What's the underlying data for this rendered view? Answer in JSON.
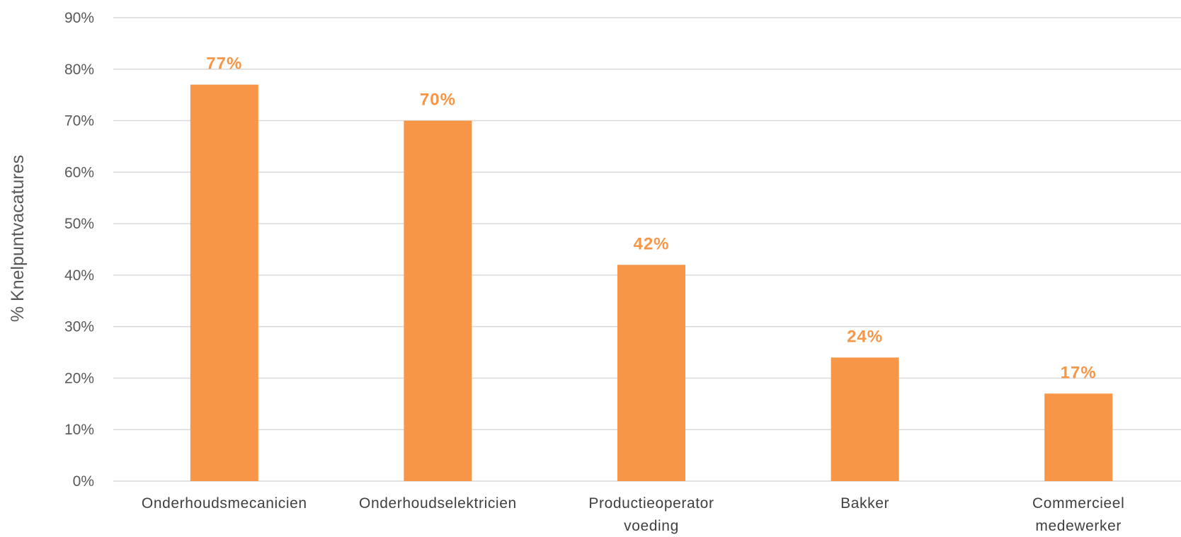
{
  "chart_data": {
    "type": "bar",
    "title": "",
    "xlabel": "",
    "ylabel": "% Knelpuntvacatures",
    "categories": [
      [
        "Onderhoudsmecanicien"
      ],
      [
        "Onderhoudselektricien"
      ],
      [
        "Productieoperator",
        "voeding"
      ],
      [
        "Bakker"
      ],
      [
        "Commercieel",
        "medewerker"
      ]
    ],
    "values": [
      77,
      70,
      42,
      24,
      17
    ],
    "data_labels": [
      "77%",
      "70%",
      "42%",
      "24%",
      "17%"
    ],
    "yticks": [
      0,
      10,
      20,
      30,
      40,
      50,
      60,
      70,
      80,
      90
    ],
    "ytick_labels": [
      "0%",
      "10%",
      "20%",
      "30%",
      "40%",
      "50%",
      "60%",
      "70%",
      "80%",
      "90%"
    ],
    "ylim": [
      0,
      90
    ],
    "grid": true,
    "legend": "none",
    "colors": {
      "bar": "#F79646",
      "data_label": "#F79646",
      "grid": "#D9D9D9",
      "text": "#595959"
    }
  }
}
